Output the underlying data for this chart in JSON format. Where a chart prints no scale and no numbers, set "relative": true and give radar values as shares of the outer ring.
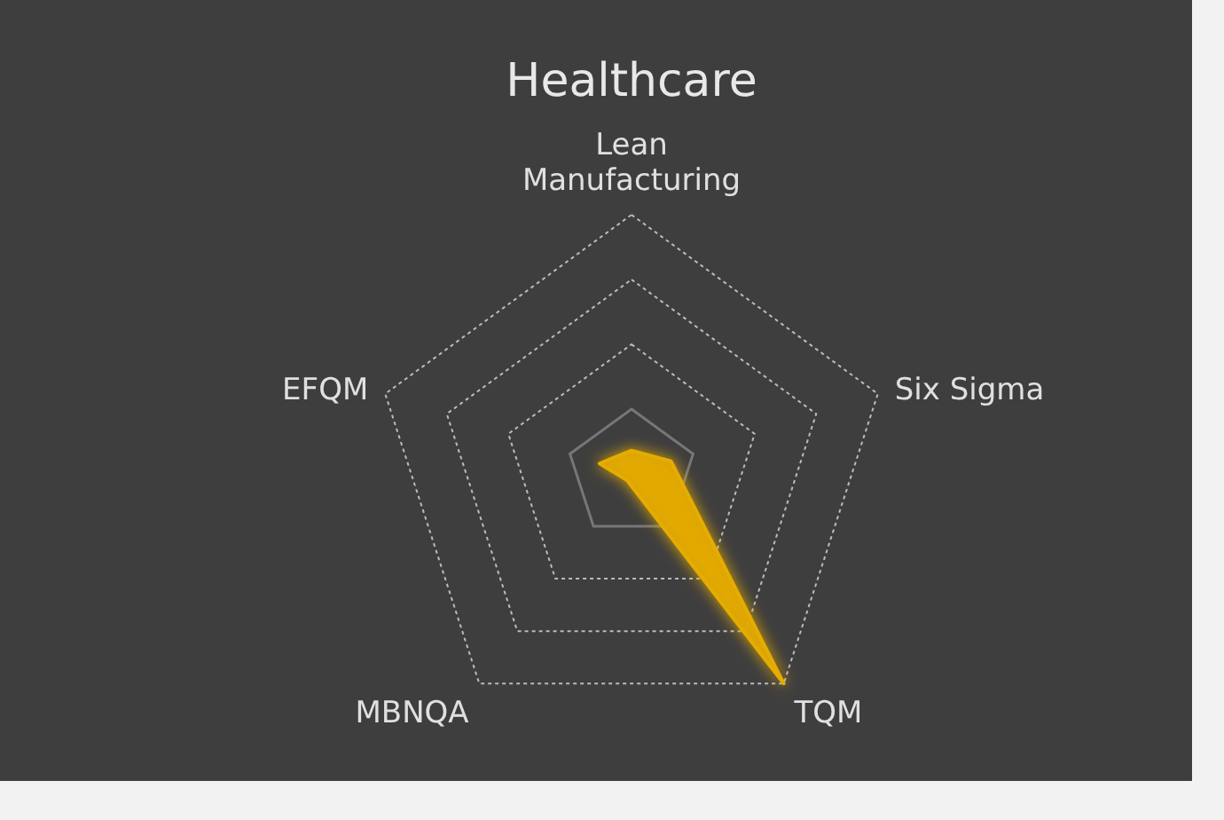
{
  "chart_data": {
    "type": "radar",
    "title": "Healthcare",
    "relative": true,
    "categories": [
      "Lean\nManufacturing",
      "Six Sigma",
      "TQM",
      "MBNQA",
      "EFQM"
    ],
    "series": [
      {
        "color": "#e6ac00",
        "values": [
          0.09,
          0.16,
          1,
          0.03,
          0.13
        ]
      }
    ]
  }
}
